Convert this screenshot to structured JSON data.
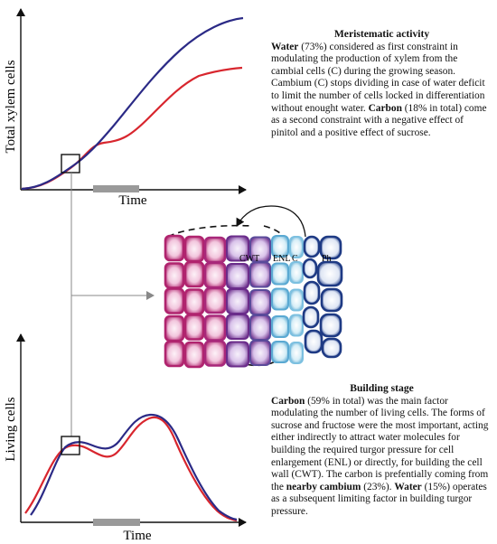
{
  "top_chart": {
    "ylabel": "Total xylem cells",
    "xlabel": "Time"
  },
  "bottom_chart": {
    "ylabel": "Living cells",
    "xlabel": "Time"
  },
  "tissue_labels": {
    "cwt": "CWT",
    "enl": "ENL",
    "c": "C",
    "ph": "Ph"
  },
  "meristematic": {
    "title": "Meristematic activity",
    "p1_bold": "Water",
    "p1_a": " (73%) considered as first constraint in modulating the production of xylem from the cambial cells (C) during the growing season. Cambium (C) stops dividing in case of water deficit to limit the number of cells locked in differentiation without enought water. ",
    "p1_bold2": "Carbon",
    "p1_b": " (18% in total) come as a second constraint with a negative effect of pinitol and a positive effect of sucrose."
  },
  "building": {
    "title": "Building stage",
    "b1": "Carbon",
    "t1": " (59% in total) was the main factor modulating the number of living cells. The forms of sucrose and fructose were the most important, acting either indirectly to attract water molecules for building the required turgor pressure for cell enlargement (ENL) or directly, for building the cell wall (CWT). The carbon is prefentially coming from the ",
    "b2": "nearby cambium",
    "t2": " (23%). ",
    "b3": "Water",
    "t3": " (15%) operates as a subsequent limiting factor in building turgor pressure."
  },
  "colors": {
    "blue": "#2b2a86",
    "red": "#d8262e",
    "gray": "#9a9a9a",
    "magenta": "#b0246e",
    "purple": "#6a2c8a",
    "light_blue": "#9fd3ea",
    "navy": "#1e3a84"
  }
}
